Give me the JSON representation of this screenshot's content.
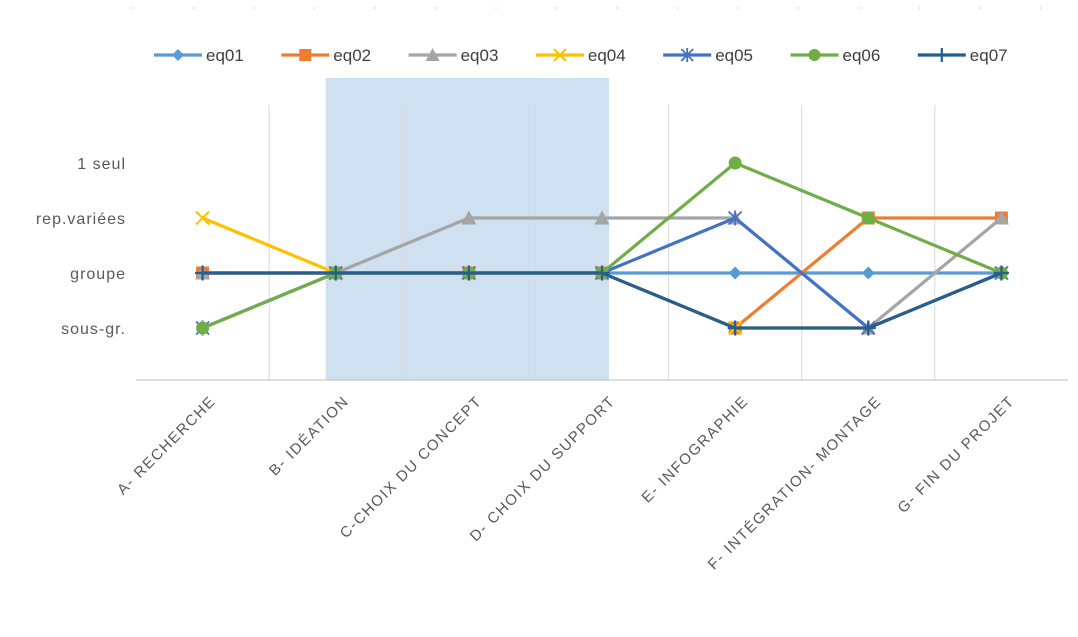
{
  "chart_data": {
    "type": "line",
    "title": "",
    "xlabel": "",
    "ylabel": "",
    "categories": [
      "A- RECHERCHE",
      "B- IDÉATION",
      "C-CHOIX DU CONCEPT",
      "D- CHOIX DU SUPPORT",
      "E- INFOGRAPHIE",
      "F- INTÉGRATION- MONTAGE",
      "G- FIN DU PROJET"
    ],
    "y_categories": [
      "sous-gr.",
      "groupe",
      "rep.variées",
      "1 seul"
    ],
    "ylim": [
      0,
      5
    ],
    "highlight_band": {
      "from": "B- IDÉATION",
      "to": "D- CHOIX DU SUPPORT",
      "color": "#cfe0f1"
    },
    "legend_position": "top",
    "grid": {
      "vertical": true,
      "horizontal": false
    },
    "series": [
      {
        "name": "eq01",
        "color": "#5b9bd5",
        "marker": "diamond",
        "values": [
          2,
          2,
          2,
          2,
          2,
          2,
          2
        ]
      },
      {
        "name": "eq02",
        "color": "#ed7d31",
        "marker": "square",
        "values": [
          2,
          2,
          2,
          2,
          1,
          3,
          3
        ]
      },
      {
        "name": "eq03",
        "color": "#a5a5a5",
        "marker": "triangle",
        "values": [
          2,
          2,
          3,
          3,
          3,
          1,
          3
        ]
      },
      {
        "name": "eq04",
        "color": "#ffc000",
        "marker": "x",
        "values": [
          3,
          2,
          2,
          2,
          1,
          1,
          2
        ]
      },
      {
        "name": "eq05",
        "color": "#4472c4",
        "marker": "star",
        "values": [
          1,
          2,
          2,
          2,
          3,
          1,
          2
        ]
      },
      {
        "name": "eq06",
        "color": "#70ad47",
        "marker": "circle",
        "values": [
          1,
          2,
          2,
          2,
          4,
          3,
          2
        ]
      },
      {
        "name": "eq07",
        "color": "#255e91",
        "marker": "plus",
        "values": [
          2,
          2,
          2,
          2,
          1,
          1,
          2
        ]
      }
    ]
  }
}
